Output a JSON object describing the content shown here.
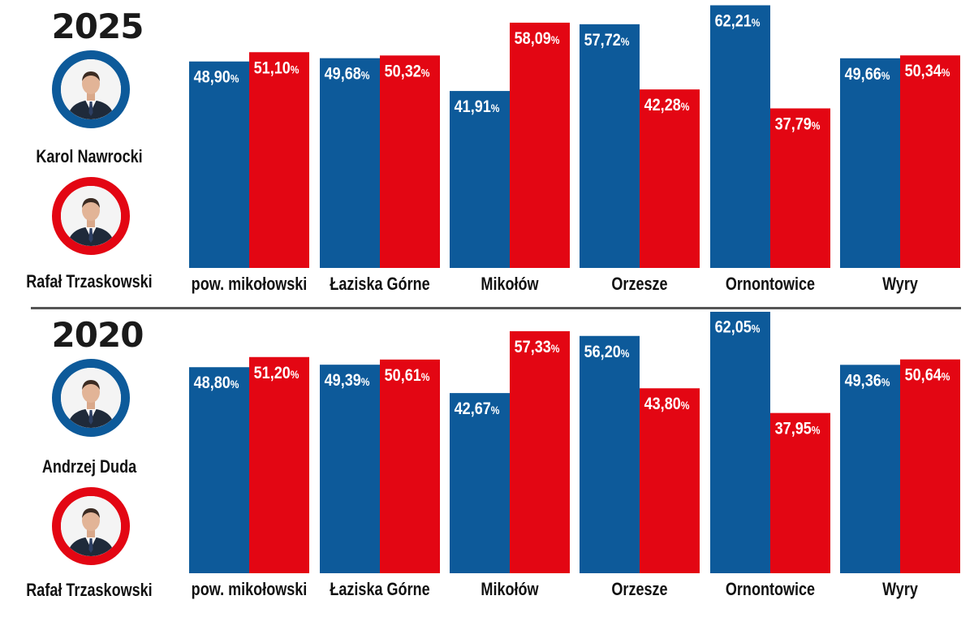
{
  "colors": {
    "candidate_1": "#0d5a9a",
    "candidate_2": "#e30613",
    "label_text": "#ffffff",
    "category_text": "#111111"
  },
  "panels": [
    {
      "year": "2025",
      "candidate_1": {
        "name": "Karol Nawrocki",
        "ring_color": "#0d5a9a",
        "icon": "portrait-photo"
      },
      "candidate_2": {
        "name": "Rafał Trzaskowski",
        "ring_color": "#e30613",
        "icon": "portrait-photo"
      }
    },
    {
      "year": "2020",
      "candidate_1": {
        "name": "Andrzej Duda",
        "ring_color": "#0d5a9a",
        "icon": "portrait-photo"
      },
      "candidate_2": {
        "name": "Rafał Trzaskowski",
        "ring_color": "#e30613",
        "icon": "portrait-photo"
      }
    }
  ],
  "chart_data": [
    {
      "type": "bar",
      "title": "2025",
      "categories": [
        "pow. mikołowski",
        "Łaziska Górne",
        "Mikołów",
        "Orzesze",
        "Ornontowice",
        "Wyry"
      ],
      "series": [
        {
          "name": "Karol Nawrocki",
          "color": "#0d5a9a",
          "values": [
            48.9,
            49.68,
            41.91,
            57.72,
            62.21,
            49.66
          ],
          "labels": [
            "48,90",
            "49,68",
            "41,91",
            "57,72",
            "62,21",
            "49,66"
          ]
        },
        {
          "name": "Rafał Trzaskowski",
          "color": "#e30613",
          "values": [
            51.1,
            50.32,
            58.09,
            42.28,
            37.79,
            50.34
          ],
          "labels": [
            "51,10",
            "50,32",
            "58,09",
            "42,28",
            "37,79",
            "50,34"
          ]
        }
      ],
      "unit": "%"
    },
    {
      "type": "bar",
      "title": "2020",
      "categories": [
        "pow. mikołowski",
        "Łaziska Górne",
        "Mikołów",
        "Orzesze",
        "Ornontowice",
        "Wyry"
      ],
      "series": [
        {
          "name": "Andrzej Duda",
          "color": "#0d5a9a",
          "values": [
            48.8,
            49.39,
            42.67,
            56.2,
            62.05,
            49.36
          ],
          "labels": [
            "48,80",
            "49,39",
            "42,67",
            "56,20",
            "62,05",
            "49,36"
          ]
        },
        {
          "name": "Rafał Trzaskowski",
          "color": "#e30613",
          "values": [
            51.2,
            50.61,
            57.33,
            43.8,
            37.95,
            50.64
          ],
          "labels": [
            "51,20",
            "50,61",
            "57,33",
            "43,80",
            "37,95",
            "50,64"
          ]
        }
      ],
      "unit": "%"
    }
  ]
}
